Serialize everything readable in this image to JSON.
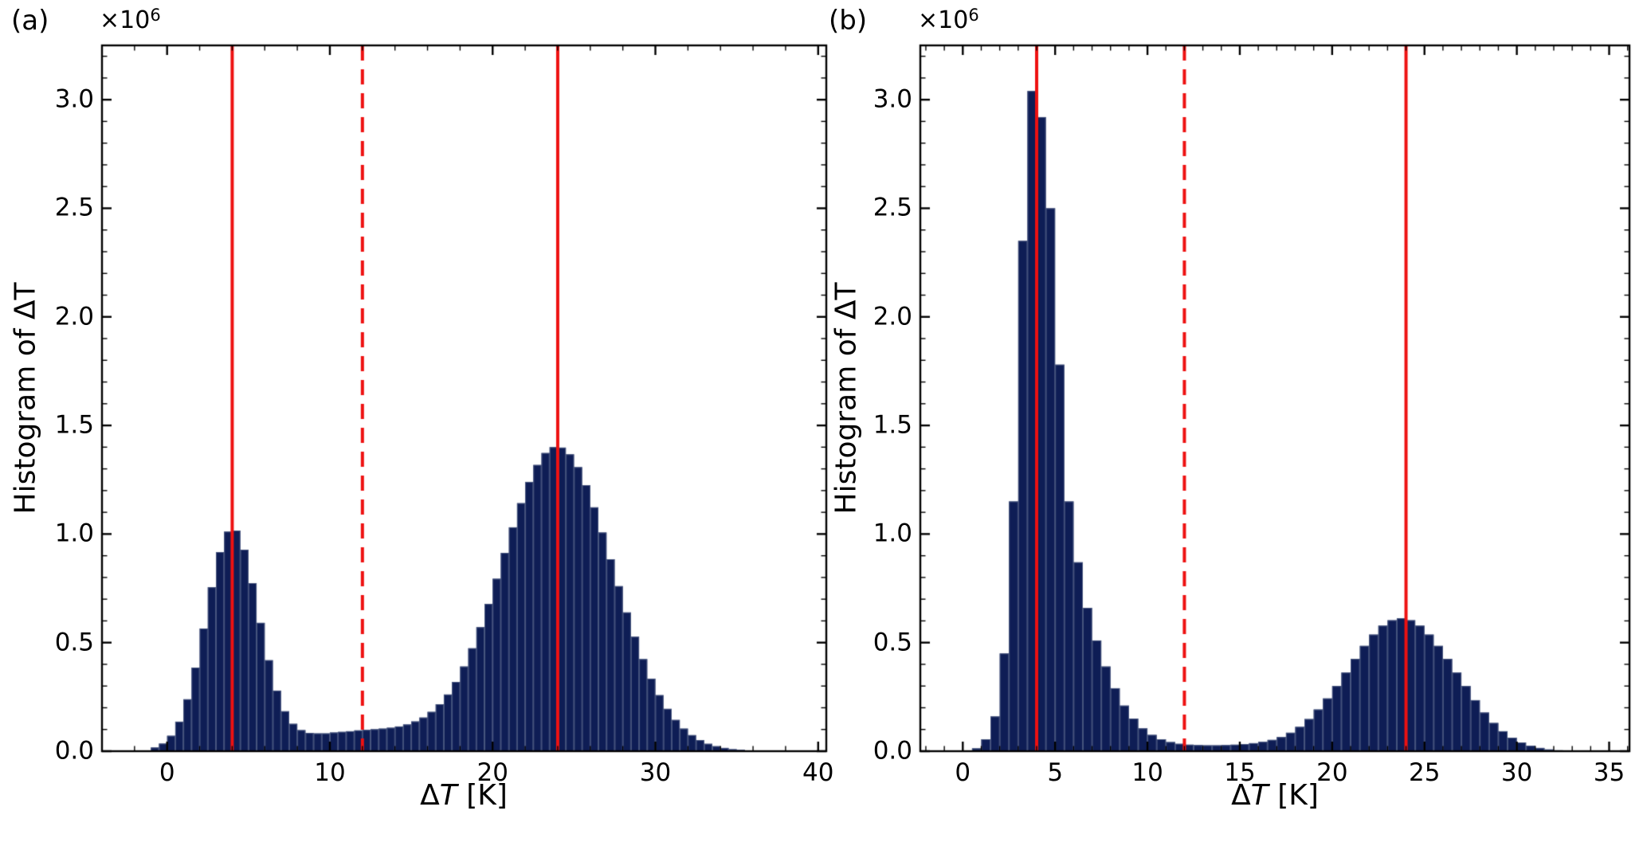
{
  "figure": {
    "background": "#ffffff"
  },
  "colors": {
    "bar_fill": "#0e1d55",
    "bar_edge": "#4a5880",
    "vline_red": "#ee1111",
    "axis": "#000000",
    "text": "#000000"
  },
  "chart_data": [
    {
      "type": "bar",
      "chart_kind": "histogram",
      "panel_label": "(a)",
      "xlabel": {
        "prefix": "Δ",
        "var": "T",
        "suffix": " [K]"
      },
      "ylabel": "Histogram of ΔT",
      "scale_label": {
        "base": "×10",
        "exp": "6"
      },
      "xlim": [
        -4,
        40.5
      ],
      "ylim": [
        0,
        3250000
      ],
      "grid": false,
      "x_major": {
        "values": [
          0,
          10,
          20,
          30,
          40
        ],
        "labels": [
          "0",
          "10",
          "20",
          "30",
          "40"
        ]
      },
      "x_minor_step": 2,
      "y_major": {
        "values": [
          0,
          500000,
          1000000,
          1500000,
          2000000,
          2500000,
          3000000
        ],
        "labels": [
          "0.0",
          "0.5",
          "1.0",
          "1.5",
          "2.0",
          "2.5",
          "3.0"
        ]
      },
      "y_minor_step": 100000,
      "bins": {
        "start": -1.0,
        "width": 0.5
      },
      "counts": [
        17000,
        35000,
        71000,
        136000,
        239000,
        385000,
        565000,
        755000,
        917000,
        1011000,
        1016000,
        928000,
        774000,
        591000,
        419000,
        279000,
        184000,
        126000,
        97000,
        84000,
        82000,
        82000,
        86000,
        89000,
        92000,
        96000,
        98000,
        101000,
        104000,
        108000,
        114000,
        123000,
        137000,
        155000,
        181000,
        216000,
        261000,
        319000,
        390000,
        474000,
        571000,
        678000,
        794000,
        913000,
        1031000,
        1142000,
        1240000,
        1318000,
        1373000,
        1400000,
        1398000,
        1367000,
        1308000,
        1225000,
        1123000,
        1007000,
        884000,
        760000,
        639000,
        527000,
        424000,
        334000,
        258000,
        195000,
        144000,
        104000,
        74000,
        51000,
        34000,
        23000,
        15000,
        9000,
        6000
      ],
      "vlines": [
        {
          "x": 4,
          "style": "solid"
        },
        {
          "x": 12,
          "style": "dashed"
        },
        {
          "x": 24,
          "style": "solid"
        }
      ]
    },
    {
      "type": "bar",
      "chart_kind": "histogram",
      "panel_label": "(b)",
      "xlabel": {
        "prefix": "Δ",
        "var": "T",
        "suffix": " [K]"
      },
      "ylabel": "Histogram of ΔT",
      "scale_label": {
        "base": "×10",
        "exp": "6"
      },
      "xlim": [
        -2.3,
        36.1
      ],
      "ylim": [
        0,
        3250000
      ],
      "grid": false,
      "x_major": {
        "values": [
          0,
          5,
          10,
          15,
          20,
          25,
          30,
          35
        ],
        "labels": [
          "0",
          "5",
          "10",
          "15",
          "20",
          "25",
          "30",
          "35"
        ]
      },
      "x_minor_step": 1,
      "y_major": {
        "values": [
          0,
          500000,
          1000000,
          1500000,
          2000000,
          2500000,
          3000000
        ],
        "labels": [
          "0.0",
          "0.5",
          "1.0",
          "1.5",
          "2.0",
          "2.5",
          "3.0"
        ]
      },
      "y_minor_step": 100000,
      "bins": {
        "start": 0.0,
        "width": 0.5
      },
      "counts": [
        3000,
        13000,
        55000,
        160000,
        450000,
        1150000,
        2350000,
        3040000,
        2920000,
        2500000,
        1780000,
        1150000,
        870000,
        660000,
        510000,
        390000,
        290000,
        210000,
        150000,
        105000,
        75000,
        55000,
        42000,
        34000,
        30000,
        28000,
        27000,
        27000,
        28000,
        30000,
        33000,
        37000,
        43000,
        52000,
        65000,
        85000,
        112000,
        148000,
        192000,
        243000,
        300000,
        362000,
        425000,
        485000,
        537000,
        578000,
        603000,
        612000,
        603000,
        578000,
        537000,
        485000,
        425000,
        362000,
        300000,
        235000,
        178000,
        130000,
        92000,
        62000,
        40000,
        25000,
        15000,
        8000,
        4000,
        2000
      ],
      "vlines": [
        {
          "x": 4,
          "style": "solid"
        },
        {
          "x": 12,
          "style": "dashed"
        },
        {
          "x": 24,
          "style": "solid"
        }
      ]
    }
  ]
}
